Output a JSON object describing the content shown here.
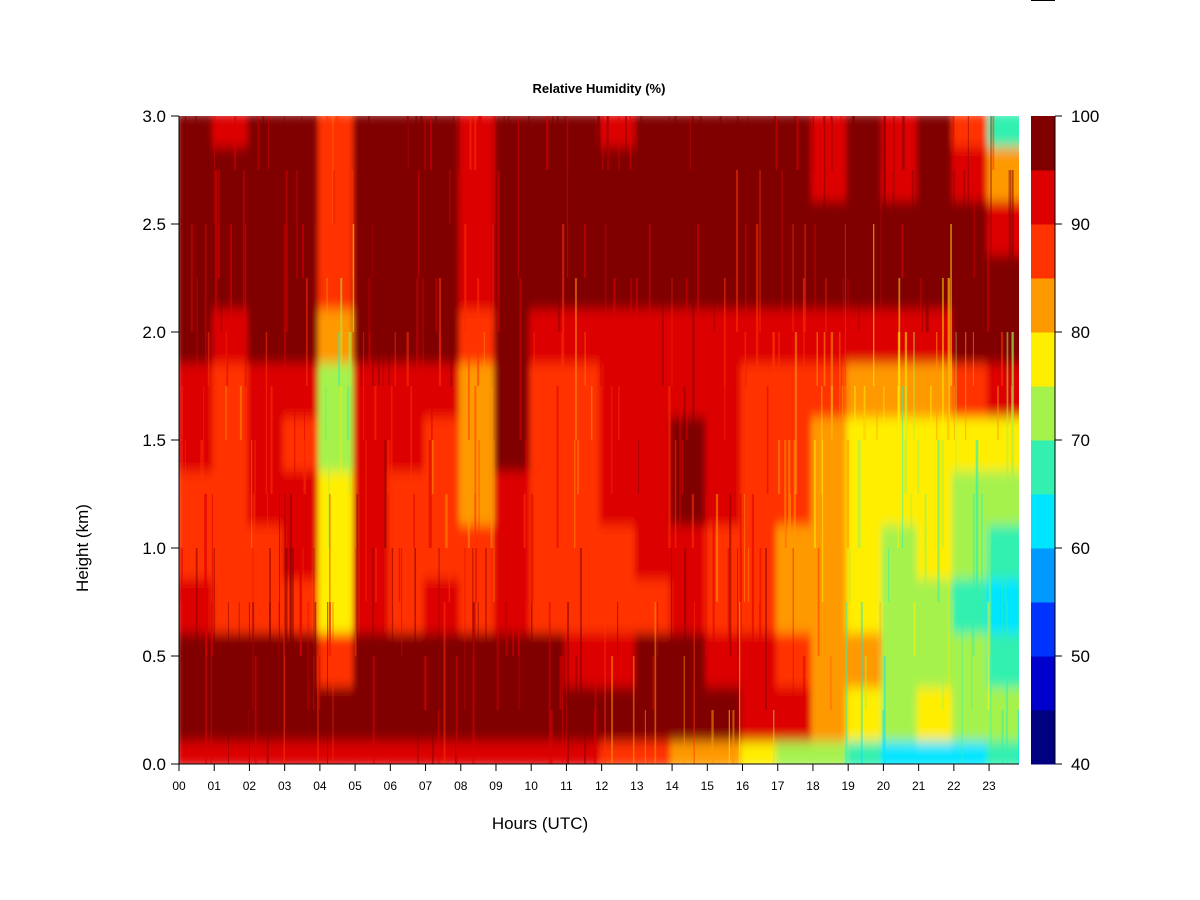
{
  "chart_data": {
    "type": "heatmap",
    "title": "Relative Humidity (%)",
    "xlabel": "Hours (UTC)",
    "ylabel": "Height (km)",
    "xlim": [
      0,
      23.85
    ],
    "ylim": [
      0,
      3.0
    ],
    "x_ticks": [
      "00",
      "01",
      "02",
      "03",
      "04",
      "05",
      "06",
      "07",
      "08",
      "09",
      "10",
      "11",
      "12",
      "13",
      "14",
      "15",
      "16",
      "17",
      "18",
      "19",
      "20",
      "21",
      "22",
      "23"
    ],
    "y_ticks": [
      "0.0",
      "0.5",
      "1.0",
      "1.5",
      "2.0",
      "2.5",
      "3.0"
    ],
    "colorbar": {
      "levels": [
        40,
        45,
        50,
        55,
        60,
        65,
        70,
        75,
        80,
        85,
        90,
        95,
        100
      ],
      "tick_labels": [
        "40",
        "50",
        "60",
        "70",
        "80",
        "90",
        "100"
      ],
      "colors": [
        "#000080",
        "#0000cd",
        "#0033ff",
        "#0099ff",
        "#00e5ff",
        "#33f0b0",
        "#a6f24d",
        "#ffee00",
        "#ff9900",
        "#ff3300",
        "#dd0000",
        "#800000"
      ]
    },
    "hours": [
      0,
      1,
      2,
      3,
      4,
      5,
      6,
      7,
      8,
      9,
      10,
      11,
      12,
      13,
      14,
      15,
      16,
      17,
      18,
      19,
      20,
      21,
      22,
      23
    ],
    "heights_km": [
      0.0,
      0.25,
      0.5,
      0.75,
      1.0,
      1.25,
      1.5,
      1.75,
      2.0,
      2.25,
      2.5,
      2.75,
      3.0
    ],
    "rh_percent": [
      [
        93,
        93,
        93,
        94,
        93,
        94,
        94,
        93,
        92,
        93,
        93,
        92,
        88,
        85,
        84,
        80,
        76,
        72,
        70,
        66,
        62,
        63,
        64,
        66
      ],
      [
        97,
        97,
        97,
        97,
        96,
        97,
        97,
        97,
        96,
        97,
        97,
        96,
        96,
        97,
        97,
        96,
        92,
        90,
        84,
        78,
        74,
        76,
        74,
        72
      ],
      [
        97,
        97,
        97,
        97,
        88,
        97,
        97,
        97,
        95,
        97,
        97,
        93,
        93,
        96,
        95,
        93,
        91,
        88,
        84,
        80,
        72,
        74,
        70,
        66
      ],
      [
        90,
        89,
        88,
        89,
        78,
        90,
        88,
        90,
        86,
        91,
        88,
        85,
        87,
        89,
        90,
        87,
        85,
        83,
        80,
        77,
        70,
        72,
        68,
        64
      ],
      [
        89,
        88,
        89,
        90,
        76,
        91,
        89,
        89,
        85,
        91,
        89,
        85,
        87,
        90,
        91,
        88,
        86,
        84,
        81,
        78,
        74,
        75,
        70,
        67
      ],
      [
        89,
        87,
        90,
        90,
        75,
        91,
        89,
        89,
        84,
        93,
        89,
        85,
        90,
        94,
        95,
        90,
        87,
        85,
        81,
        78,
        76,
        77,
        74,
        74
      ],
      [
        90,
        86,
        92,
        89,
        72,
        92,
        90,
        89,
        83,
        97,
        89,
        86,
        91,
        94,
        96,
        92,
        88,
        86,
        82,
        79,
        78,
        79,
        78,
        79
      ],
      [
        91,
        87,
        92,
        90,
        72,
        93,
        92,
        92,
        84,
        97,
        89,
        87,
        92,
        93,
        94,
        93,
        88,
        86,
        85,
        83,
        83,
        83,
        86,
        91
      ],
      [
        98,
        93,
        98,
        97,
        80,
        98,
        98,
        98,
        88,
        98,
        93,
        91,
        93,
        94,
        94,
        93,
        92,
        92,
        92,
        93,
        93,
        93,
        95,
        97
      ],
      [
        98,
        97,
        98,
        98,
        86,
        98,
        98,
        98,
        92,
        98,
        98,
        98,
        98,
        98,
        98,
        98,
        98,
        98,
        98,
        98,
        98,
        98,
        98,
        98
      ],
      [
        98,
        96,
        97,
        97,
        88,
        98,
        98,
        98,
        93,
        98,
        98,
        98,
        96,
        98,
        98,
        98,
        98,
        98,
        98,
        98,
        98,
        98,
        98,
        93
      ],
      [
        97,
        95,
        96,
        96,
        86,
        98,
        98,
        98,
        92,
        98,
        98,
        97,
        95,
        98,
        98,
        98,
        98,
        97,
        94,
        96,
        94,
        97,
        92,
        84
      ],
      [
        97,
        94,
        96,
        96,
        86,
        98,
        98,
        98,
        92,
        98,
        98,
        96,
        94,
        98,
        98,
        98,
        98,
        96,
        92,
        95,
        92,
        95,
        88,
        68
      ]
    ]
  }
}
